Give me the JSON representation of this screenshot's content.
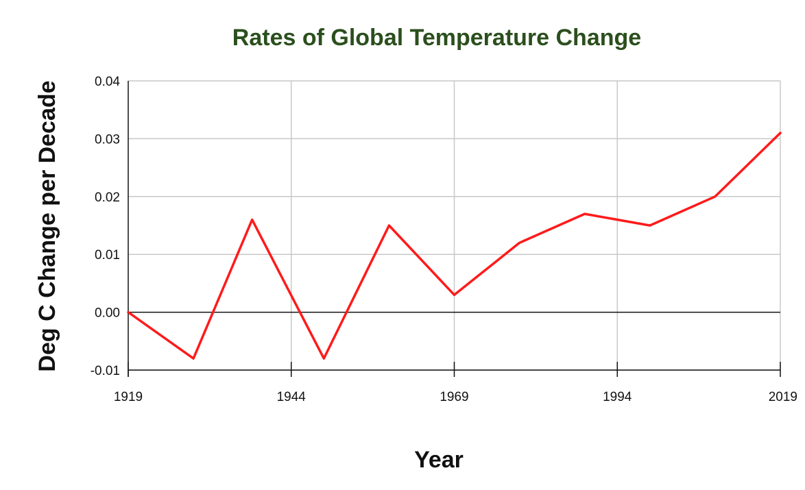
{
  "chart_data": {
    "type": "line",
    "title": "Rates of Global Temperature Change",
    "xlabel": "Year",
    "ylabel": "Deg C Change per Decade",
    "xlim": [
      1919,
      2019
    ],
    "ylim": [
      -0.01,
      0.04
    ],
    "x_ticks": [
      1919,
      1944,
      1969,
      1994,
      2019
    ],
    "y_ticks": [
      -0.01,
      0.0,
      0.01,
      0.02,
      0.03,
      0.04
    ],
    "y_tick_labels": [
      "-0.01",
      "0.00",
      "0.01",
      "0.02",
      "0.03",
      "0.04"
    ],
    "grid": true,
    "legend": "none",
    "series": [
      {
        "color": "#ff1a1a",
        "x": [
          1919,
          1929,
          1938,
          1949,
          1959,
          1969,
          1979,
          1989,
          1999,
          2009,
          2019
        ],
        "values": [
          0.0,
          -0.008,
          0.016,
          -0.008,
          0.015,
          0.003,
          0.012,
          0.017,
          0.015,
          0.02,
          0.031
        ]
      }
    ]
  }
}
